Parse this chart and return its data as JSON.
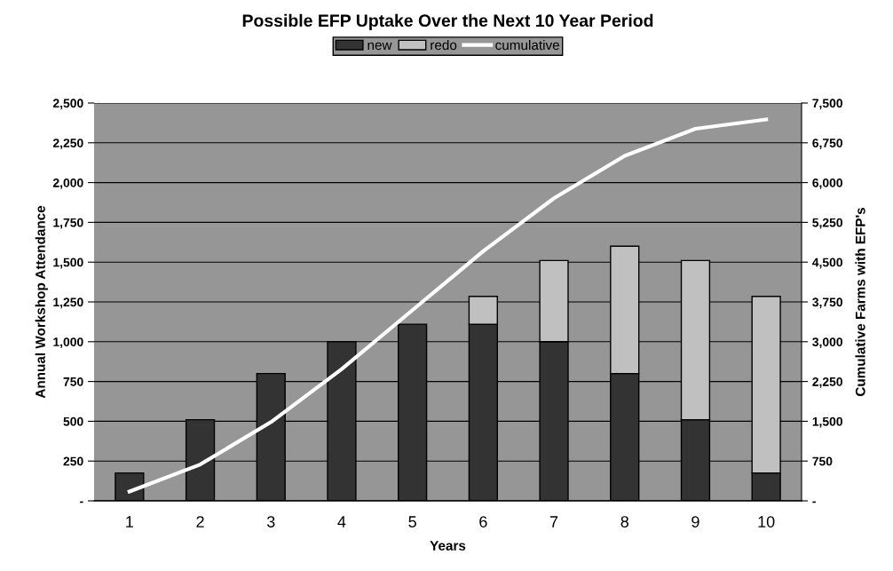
{
  "chart_data": {
    "type": "bar",
    "title": "Possible EFP Uptake Over the Next 10 Year Period",
    "xlabel": "Years",
    "ylabel": "Annual Workshop Attendance",
    "y2label": "Cumulative Farms with EFP's",
    "categories": [
      "1",
      "2",
      "3",
      "4",
      "5",
      "6",
      "7",
      "8",
      "9",
      "10"
    ],
    "stacked": true,
    "series": [
      {
        "name": "new",
        "color": "#333333",
        "values": [
          175,
          510,
          800,
          1000,
          1110,
          1110,
          1000,
          800,
          510,
          175
        ]
      },
      {
        "name": "redo",
        "color": "#c0c0c0",
        "values": [
          null,
          null,
          null,
          null,
          null,
          175,
          510,
          800,
          1000,
          1110
        ]
      },
      {
        "name": "cumulative",
        "color": "#ffffff",
        "type": "line",
        "axis": "y2",
        "values": [
          175,
          685,
          1485,
          2485,
          3595,
          4705,
          5705,
          6505,
          7015,
          7190
        ]
      }
    ],
    "ylim": [
      0,
      2500
    ],
    "yticks": [
      {
        "value": 0,
        "label": "-"
      },
      {
        "value": 250,
        "label": "250"
      },
      {
        "value": 500,
        "label": "500"
      },
      {
        "value": 750,
        "label": "750"
      },
      {
        "value": 1000,
        "label": "1,000"
      },
      {
        "value": 1250,
        "label": "1,250"
      },
      {
        "value": 1500,
        "label": "1,500"
      },
      {
        "value": 1750,
        "label": "1,750"
      },
      {
        "value": 2000,
        "label": "2,000"
      },
      {
        "value": 2250,
        "label": "2,250"
      },
      {
        "value": 2500,
        "label": "2,500"
      }
    ],
    "y2lim": [
      0,
      7500
    ],
    "y2ticks": [
      {
        "value": 0,
        "label": "-"
      },
      {
        "value": 750,
        "label": "750"
      },
      {
        "value": 1500,
        "label": "1,500"
      },
      {
        "value": 2250,
        "label": "2,250"
      },
      {
        "value": 3000,
        "label": "3,000"
      },
      {
        "value": 3750,
        "label": "3,750"
      },
      {
        "value": 4500,
        "label": "4,500"
      },
      {
        "value": 5250,
        "label": "5,250"
      },
      {
        "value": 6000,
        "label": "6,000"
      },
      {
        "value": 6750,
        "label": "6,750"
      },
      {
        "value": 7500,
        "label": "7,500"
      }
    ],
    "grid": "y",
    "legend": "top",
    "marker": "none",
    "line_style": "solid"
  }
}
